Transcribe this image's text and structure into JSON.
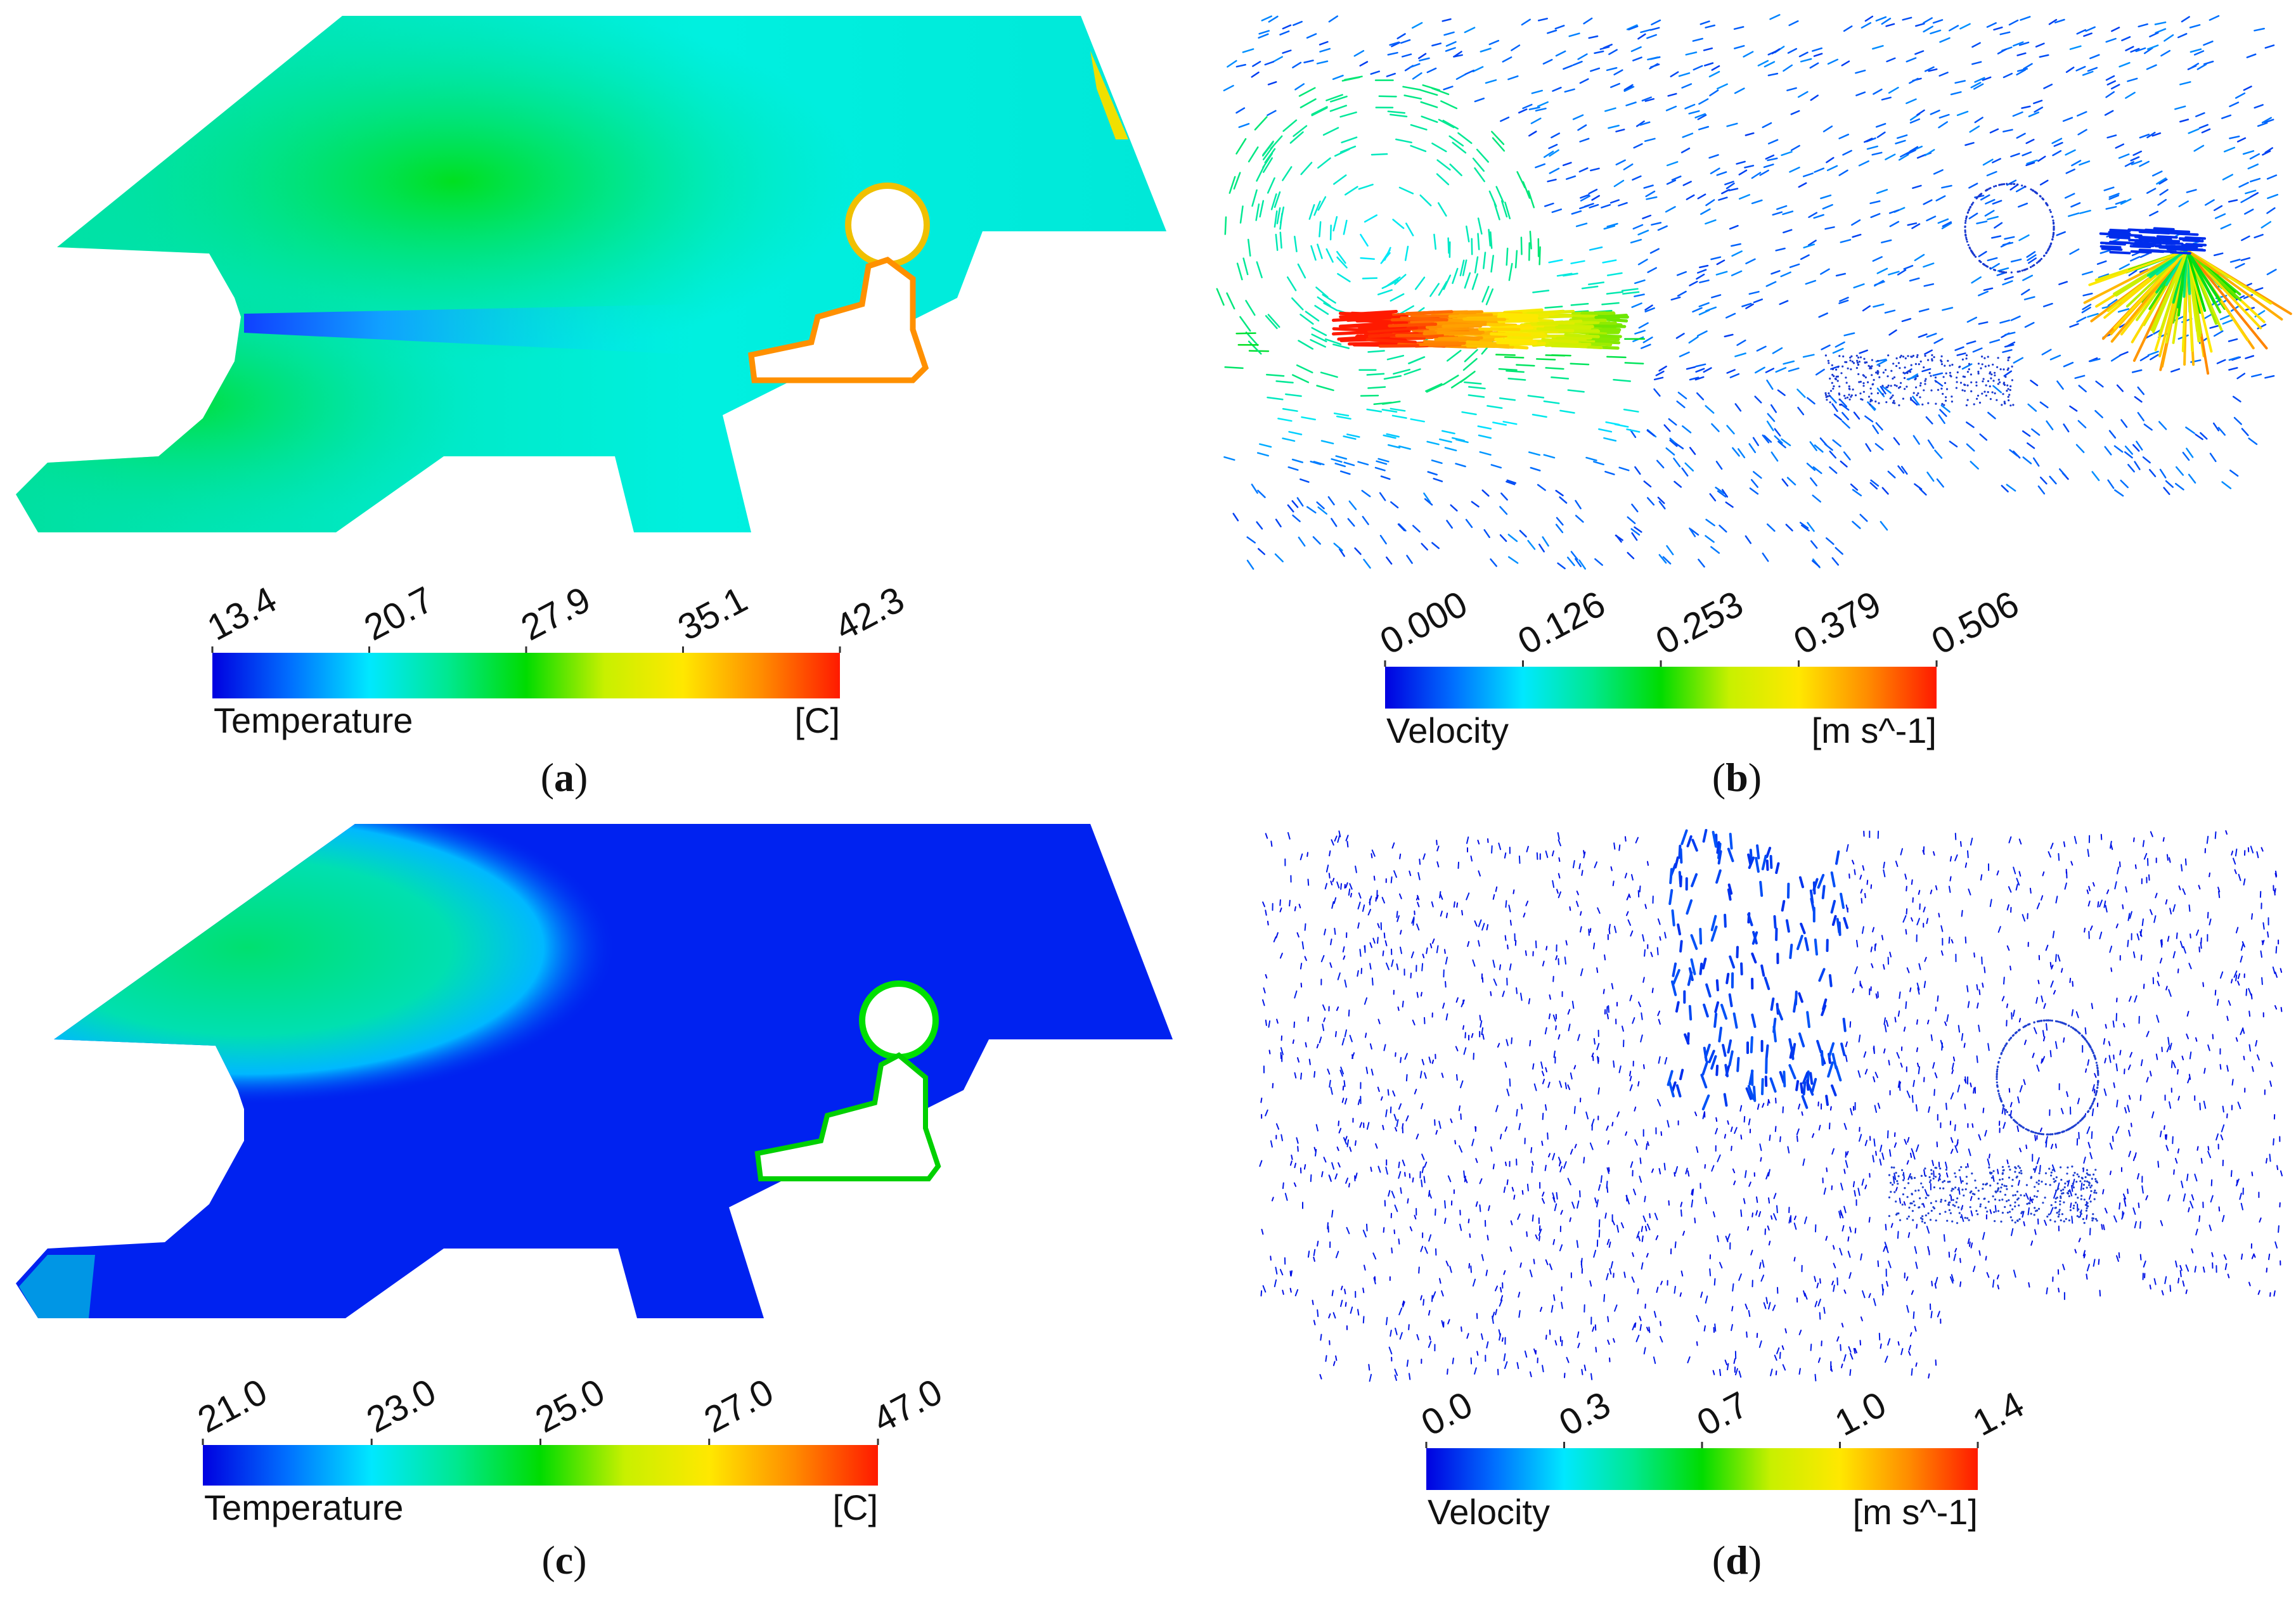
{
  "panels": [
    {
      "id": "a",
      "caption_letter": "a",
      "legend": {
        "title": "Temperature",
        "unit": "[C]",
        "ticks": [
          "13.4",
          "20.7",
          "27.9",
          "35.1",
          "42.3"
        ]
      }
    },
    {
      "id": "b",
      "caption_letter": "b",
      "legend": {
        "title": "Velocity",
        "unit": "[m s^-1]",
        "ticks": [
          "0.000",
          "0.126",
          "0.253",
          "0.379",
          "0.506"
        ]
      }
    },
    {
      "id": "c",
      "caption_letter": "c",
      "legend": {
        "title": "Temperature",
        "unit": "[C]",
        "ticks": [
          "21.0",
          "23.0",
          "25.0",
          "27.0",
          "47.0"
        ]
      }
    },
    {
      "id": "d",
      "caption_letter": "d",
      "legend": {
        "title": "Velocity",
        "unit": "[m s^-1]",
        "ticks": [
          "0.0",
          "0.3",
          "0.7",
          "1.0",
          "1.4"
        ]
      }
    }
  ],
  "colormap": [
    "#0000e0",
    "#0070ff",
    "#00e8ff",
    "#00e890",
    "#00dc00",
    "#c8f000",
    "#ffe800",
    "#ff8c00",
    "#ff1a00"
  ]
}
